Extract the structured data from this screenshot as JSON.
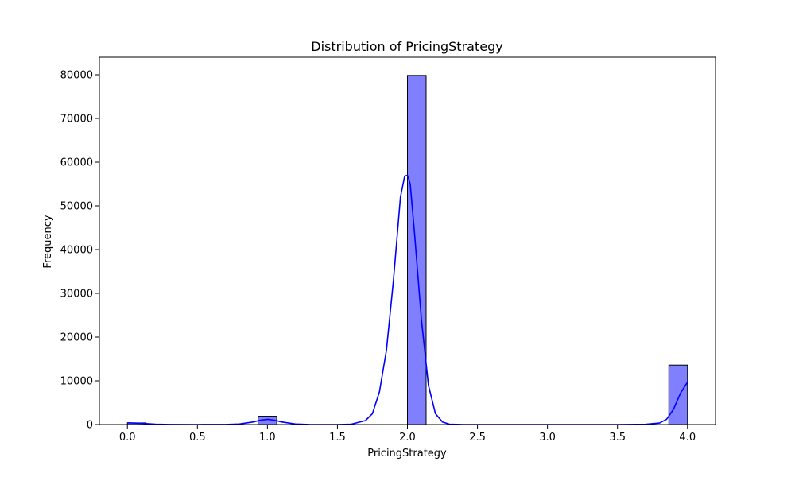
{
  "chart_data": {
    "type": "bar",
    "title": "Distribution of PricingStrategy",
    "xlabel": "PricingStrategy",
    "ylabel": "Frequency",
    "xlim": [
      -0.2,
      4.2
    ],
    "ylim": [
      0,
      84000
    ],
    "xticks": [
      0.0,
      0.5,
      1.0,
      1.5,
      2.0,
      2.5,
      3.0,
      3.5,
      4.0
    ],
    "xtick_labels": [
      "0.0",
      "0.5",
      "1.0",
      "1.5",
      "2.0",
      "2.5",
      "3.0",
      "3.5",
      "4.0"
    ],
    "yticks": [
      0,
      10000,
      20000,
      30000,
      40000,
      50000,
      60000,
      70000,
      80000
    ],
    "ytick_labels": [
      "0",
      "10000",
      "20000",
      "30000",
      "40000",
      "50000",
      "60000",
      "70000",
      "80000"
    ],
    "grid": false,
    "bars": [
      {
        "x_start": 0.0,
        "x_end": 0.1333,
        "value": 380
      },
      {
        "x_start": 0.9333,
        "x_end": 1.0667,
        "value": 1900
      },
      {
        "x_start": 2.0,
        "x_end": 2.1333,
        "value": 79850
      },
      {
        "x_start": 3.8667,
        "x_end": 4.0,
        "value": 13600
      }
    ],
    "kde": {
      "x": [
        0.0,
        0.1,
        0.2,
        0.3,
        0.5,
        0.7,
        0.8,
        0.9,
        0.95,
        1.0,
        1.05,
        1.1,
        1.2,
        1.3,
        1.5,
        1.6,
        1.7,
        1.75,
        1.8,
        1.85,
        1.9,
        1.95,
        1.98,
        2.0,
        2.02,
        2.05,
        2.1,
        2.15,
        2.2,
        2.25,
        2.3,
        2.4,
        2.6,
        3.0,
        3.5,
        3.7,
        3.8,
        3.85,
        3.9,
        3.95,
        4.0
      ],
      "y": [
        400,
        300,
        100,
        20,
        0,
        10,
        120,
        600,
        1000,
        1200,
        1000,
        600,
        120,
        10,
        0,
        100,
        900,
        2500,
        7500,
        17000,
        33000,
        52000,
        56800,
        57000,
        55000,
        44000,
        24000,
        9000,
        2500,
        600,
        100,
        0,
        0,
        0,
        0,
        50,
        350,
        1200,
        3500,
        7200,
        9700
      ]
    },
    "colors": {
      "bar_fill": "#8080ff",
      "bar_edge": "#000000",
      "kde_line": "#0000ff"
    }
  }
}
